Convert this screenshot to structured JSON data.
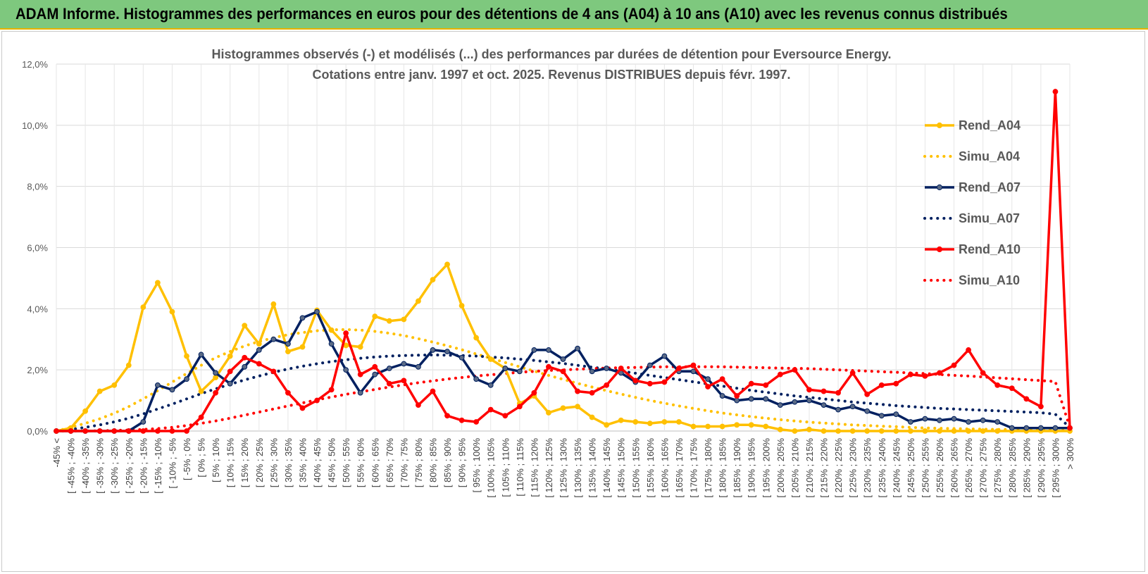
{
  "header": {
    "title": "ADAM Informe. Histogrammes des performances en euros pour des détentions de 4 ans (A04) à 10 ans (A10) avec les revenus connus distribués"
  },
  "chart_data": {
    "type": "line",
    "title": "Histogrammes observés (-) et modélisés (...) des performances par durées de détention pour Eversource Energy.",
    "subtitle": "Cotations entre janv. 1997 et oct. 2025.  Revenus DISTRIBUES depuis févr. 1997.",
    "xlabel": "",
    "ylabel": "",
    "ylim": [
      0,
      12
    ],
    "y_ticks": [
      "0,0%",
      "2,0%",
      "4,0%",
      "6,0%",
      "8,0%",
      "10,0%",
      "12,0%"
    ],
    "grid": true,
    "legend_position": "right",
    "categories": [
      "-45% <",
      "[ -45% ; -40%",
      "[ -40% ; -35%",
      "[ -35% ; -30%",
      "[ -30% ; -25%",
      "[ -25% ; -20%",
      "[ -20% ; -15%",
      "[ -15% ; -10%",
      "[ -10% ; -5%",
      "[ -5% ; 0%",
      "[ 0% ; 5%",
      "[ 5% ; 10%",
      "[ 10% ; 15%",
      "[ 15% ; 20%",
      "[ 20% ; 25%",
      "[ 25% ; 30%",
      "[ 30% ; 35%",
      "[ 35% ; 40%",
      "[ 40% ; 45%",
      "[ 45% ; 50%",
      "[ 50% ; 55%",
      "[ 55% ; 60%",
      "[ 60% ; 65%",
      "[ 65% ; 70%",
      "[ 70% ; 75%",
      "[ 75% ; 80%",
      "[ 80% ; 85%",
      "[ 85% ; 90%",
      "[ 90% ; 95%",
      "[ 95% ; 100%",
      "[ 100% ; 105%",
      "[ 105% ; 110%",
      "[ 110% ; 115%",
      "[ 115% ; 120%",
      "[ 120% ; 125%",
      "[ 125% ; 130%",
      "[ 130% ; 135%",
      "[ 135% ; 140%",
      "[ 140% ; 145%",
      "[ 145% ; 150%",
      "[ 150% ; 155%",
      "[ 155% ; 160%",
      "[ 160% ; 165%",
      "[ 165% ; 170%",
      "[ 170% ; 175%",
      "[ 175% ; 180%",
      "[ 180% ; 185%",
      "[ 185% ; 190%",
      "[ 190% ; 195%",
      "[ 195% ; 200%",
      "[ 200% ; 205%",
      "[ 205% ; 210%",
      "[ 210% ; 215%",
      "[ 215% ; 220%",
      "[ 220% ; 225%",
      "[ 225% ; 230%",
      "[ 230% ; 235%",
      "[ 235% ; 240%",
      "[ 240% ; 245%",
      "[ 245% ; 250%",
      "[ 250% ; 255%",
      "[ 255% ; 260%",
      "[ 260% ; 265%",
      "[ 265% ; 270%",
      "[ 270% ; 275%",
      "[ 275% ; 280%",
      "[ 280% ; 285%",
      "[ 285% ; 290%",
      "[ 290% ; 295%",
      "[ 295% ; 300%",
      "> 300%"
    ],
    "series": [
      {
        "name": "Rend_A04",
        "style": "solid",
        "marker": "circle",
        "color": "#ffc000",
        "values": [
          0,
          0.1,
          0.65,
          1.3,
          1.5,
          2.15,
          4.05,
          4.85,
          3.9,
          2.45,
          1.3,
          1.75,
          2.45,
          3.45,
          2.85,
          4.15,
          2.6,
          2.75,
          3.95,
          3.3,
          2.8,
          2.75,
          3.75,
          3.6,
          3.65,
          4.25,
          4.95,
          5.45,
          4.1,
          3.05,
          2.35,
          2.05,
          0.9,
          1.15,
          0.6,
          0.75,
          0.8,
          0.45,
          0.2,
          0.35,
          0.3,
          0.25,
          0.3,
          0.3,
          0.15,
          0.15,
          0.15,
          0.2,
          0.2,
          0.15,
          0.05,
          0,
          0.05,
          0,
          0,
          0,
          0,
          0,
          0,
          0,
          0,
          0,
          0,
          0,
          0,
          0,
          0,
          0,
          0,
          0,
          0
        ]
      },
      {
        "name": "Simu_A04",
        "style": "dotted",
        "color": "#ffc000",
        "values": [
          0,
          0.12,
          0.25,
          0.4,
          0.58,
          0.8,
          1.05,
          1.32,
          1.6,
          1.88,
          2.15,
          2.4,
          2.6,
          2.78,
          2.93,
          3.05,
          3.15,
          3.22,
          3.28,
          3.31,
          3.32,
          3.3,
          3.26,
          3.2,
          3.12,
          3.02,
          2.91,
          2.79,
          2.66,
          2.52,
          2.38,
          2.24,
          2.1,
          1.96,
          1.82,
          1.69,
          1.56,
          1.44,
          1.32,
          1.21,
          1.1,
          1.0,
          0.91,
          0.82,
          0.74,
          0.66,
          0.59,
          0.53,
          0.47,
          0.42,
          0.37,
          0.33,
          0.29,
          0.26,
          0.23,
          0.2,
          0.18,
          0.16,
          0.14,
          0.12,
          0.1,
          0.09,
          0.08,
          0.07,
          0.06,
          0.05,
          0.05,
          0.04,
          0.03,
          0.03,
          0.02
        ]
      },
      {
        "name": "Rend_A07",
        "style": "solid",
        "marker": "circle",
        "color": "#002060",
        "values": [
          0,
          0,
          0,
          0,
          0,
          0,
          0.3,
          1.5,
          1.35,
          1.7,
          2.5,
          1.9,
          1.55,
          2.1,
          2.65,
          3.0,
          2.85,
          3.7,
          3.9,
          2.85,
          2.0,
          1.25,
          1.85,
          2.05,
          2.2,
          2.1,
          2.65,
          2.6,
          2.4,
          1.7,
          1.5,
          2.05,
          1.95,
          2.65,
          2.65,
          2.35,
          2.7,
          1.95,
          2.05,
          1.9,
          1.6,
          2.15,
          2.45,
          1.95,
          1.95,
          1.7,
          1.15,
          1.0,
          1.05,
          1.05,
          0.85,
          0.95,
          1.0,
          0.85,
          0.7,
          0.8,
          0.65,
          0.5,
          0.55,
          0.3,
          0.4,
          0.35,
          0.4,
          0.3,
          0.35,
          0.3,
          0.1,
          0.1,
          0.1,
          0.1,
          0.1
        ]
      },
      {
        "name": "Simu_A07",
        "style": "dotted",
        "color": "#002060",
        "values": [
          0,
          0.05,
          0.12,
          0.2,
          0.3,
          0.42,
          0.56,
          0.72,
          0.88,
          1.05,
          1.22,
          1.38,
          1.53,
          1.67,
          1.8,
          1.92,
          2.03,
          2.12,
          2.2,
          2.27,
          2.33,
          2.38,
          2.42,
          2.45,
          2.47,
          2.48,
          2.49,
          2.48,
          2.47,
          2.45,
          2.42,
          2.39,
          2.35,
          2.31,
          2.26,
          2.21,
          2.15,
          2.09,
          2.03,
          1.96,
          1.89,
          1.82,
          1.75,
          1.68,
          1.61,
          1.54,
          1.47,
          1.4,
          1.33,
          1.27,
          1.21,
          1.15,
          1.1,
          1.05,
          1.0,
          0.95,
          0.91,
          0.87,
          0.83,
          0.8,
          0.77,
          0.74,
          0.72,
          0.7,
          0.68,
          0.66,
          0.64,
          0.62,
          0.6,
          0.55,
          0.12
        ]
      },
      {
        "name": "Rend_A10",
        "style": "solid",
        "marker": "circle",
        "color": "#ff0000",
        "values": [
          0,
          0,
          0,
          0,
          0,
          0,
          0,
          0,
          0,
          0,
          0.45,
          1.25,
          1.95,
          2.4,
          2.2,
          1.95,
          1.25,
          0.75,
          1.0,
          1.35,
          3.2,
          1.85,
          2.1,
          1.55,
          1.65,
          0.85,
          1.3,
          0.5,
          0.35,
          0.3,
          0.7,
          0.5,
          0.8,
          1.25,
          2.1,
          1.95,
          1.3,
          1.25,
          1.5,
          2.05,
          1.65,
          1.55,
          1.6,
          2.05,
          2.15,
          1.45,
          1.7,
          1.15,
          1.55,
          1.5,
          1.85,
          2.0,
          1.35,
          1.3,
          1.25,
          1.9,
          1.2,
          1.5,
          1.55,
          1.85,
          1.8,
          1.9,
          2.15,
          2.65,
          1.9,
          1.5,
          1.4,
          1.05,
          0.8,
          11.1,
          0.1
        ]
      },
      {
        "name": "Simu_A10",
        "style": "dotted",
        "color": "#ff0000",
        "values": [
          0,
          0,
          0,
          0.01,
          0.02,
          0.03,
          0.05,
          0.08,
          0.12,
          0.18,
          0.25,
          0.33,
          0.42,
          0.52,
          0.62,
          0.72,
          0.82,
          0.92,
          1.02,
          1.11,
          1.2,
          1.28,
          1.36,
          1.44,
          1.51,
          1.58,
          1.64,
          1.7,
          1.75,
          1.8,
          1.84,
          1.88,
          1.92,
          1.95,
          1.98,
          2.0,
          2.02,
          2.04,
          2.06,
          2.07,
          2.08,
          2.09,
          2.1,
          2.1,
          2.1,
          2.1,
          2.1,
          2.09,
          2.08,
          2.07,
          2.06,
          2.05,
          2.04,
          2.02,
          2.0,
          1.98,
          1.96,
          1.94,
          1.92,
          1.9,
          1.88,
          1.85,
          1.82,
          1.8,
          1.77,
          1.74,
          1.71,
          1.68,
          1.65,
          1.62,
          0.12
        ]
      }
    ]
  }
}
